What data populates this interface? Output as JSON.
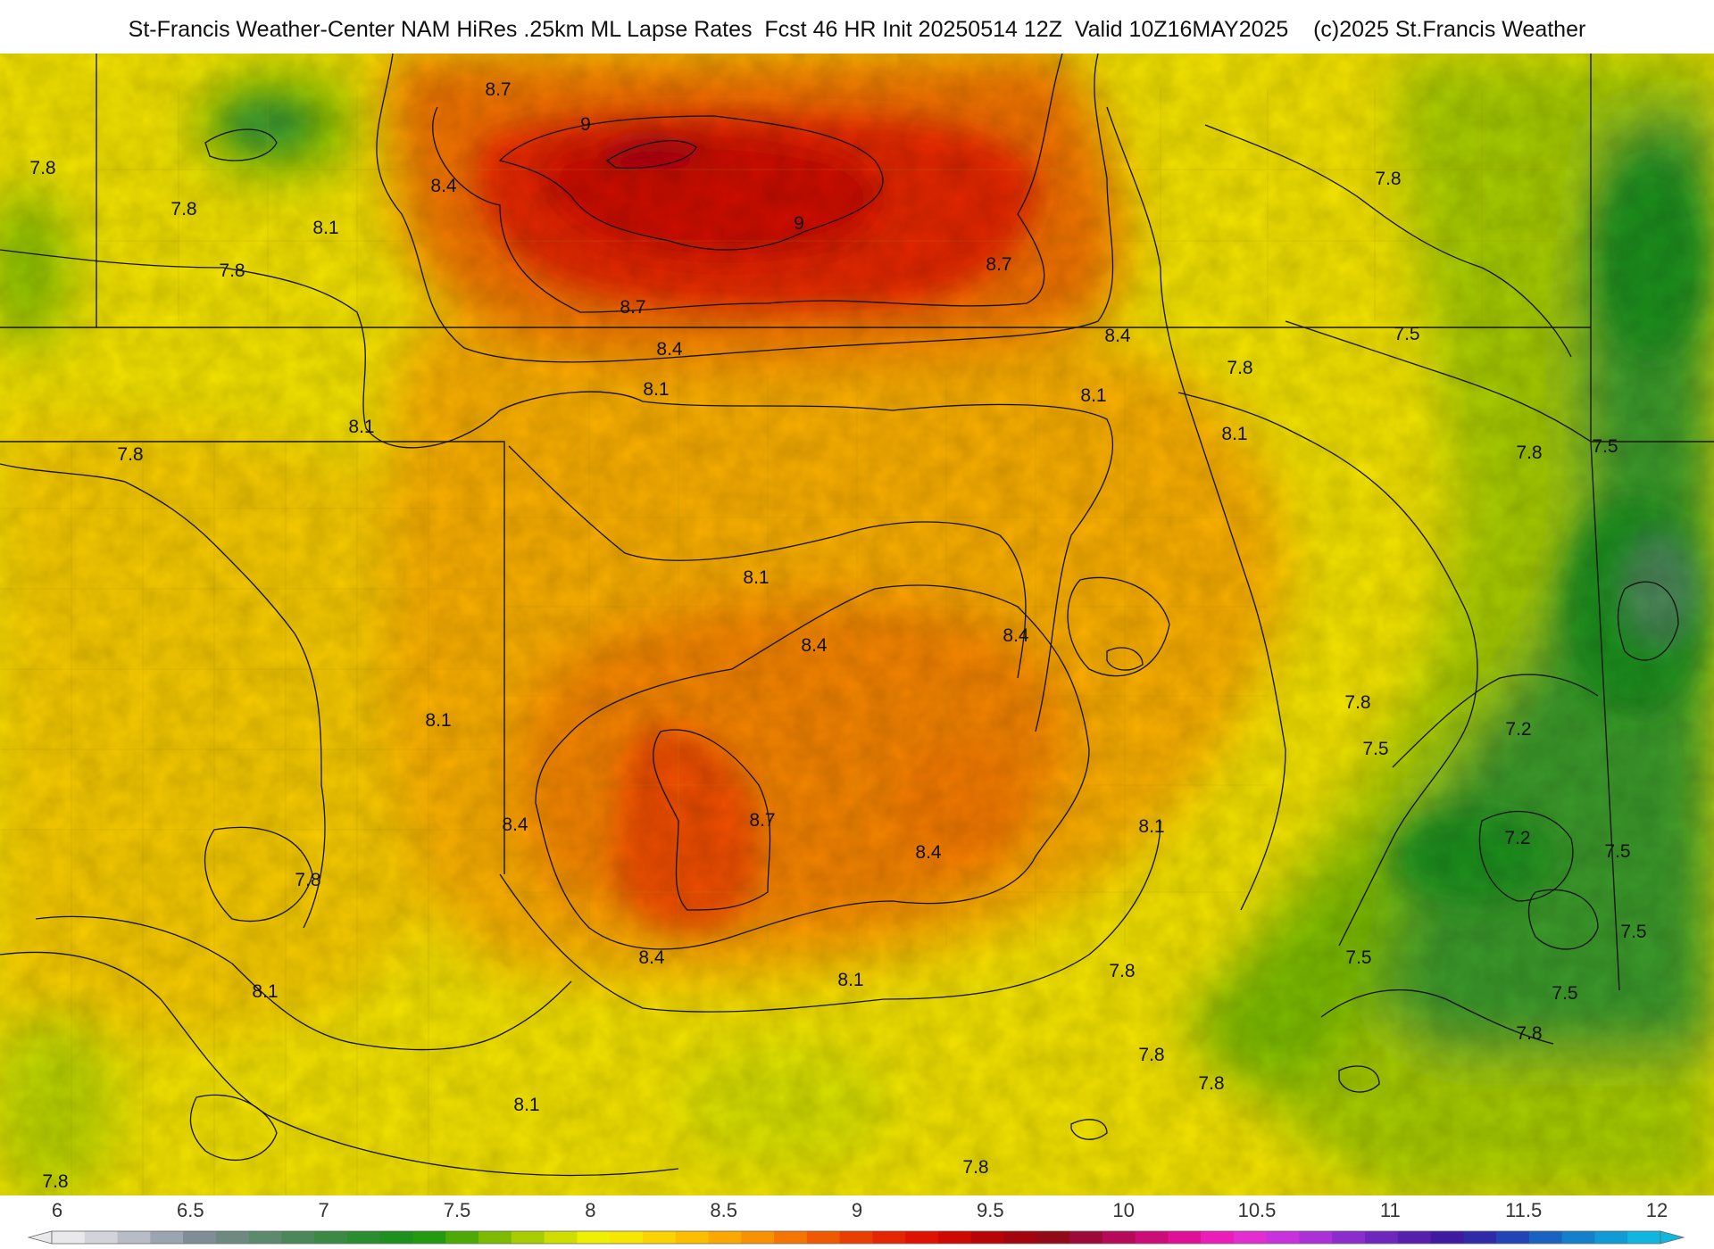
{
  "header": {
    "title": "St-Francis Weather-Center NAM HiRes .25km ML Lapse Rates  Fcst 46 HR Init 20250514 12Z  Valid 10Z16MAY2025    (c)2025 St.Francis Weather"
  },
  "colorbar": {
    "ticks": [
      "6",
      "6.5",
      "7",
      "7.5",
      "8",
      "8.5",
      "9",
      "9.5",
      "10",
      "10.5",
      "11",
      "11.5",
      "12"
    ],
    "colors": [
      "#e9e9ec",
      "#d2d4da",
      "#b7bcc6",
      "#9ba4b1",
      "#7f8d97",
      "#6e8a80",
      "#5b8a6c",
      "#4b8758",
      "#3a8a44",
      "#2c8c30",
      "#1e901e",
      "#239a10",
      "#4da906",
      "#7cbb00",
      "#a7cc00",
      "#cfdd00",
      "#eef000",
      "#f7e600",
      "#fbd300",
      "#fcbf00",
      "#fba900",
      "#f89100",
      "#f47600",
      "#ef5a00",
      "#ea3d00",
      "#e52400",
      "#df1200",
      "#cf0800",
      "#b80408",
      "#a3050f",
      "#900a18",
      "#9c0a38",
      "#b40a58",
      "#cc0c78",
      "#e00f98",
      "#ec1cb8",
      "#e22ed0",
      "#c931dc",
      "#aa31d8",
      "#8b2ccc",
      "#6f26bc",
      "#5720ac",
      "#3f1aa0",
      "#2f2aa8",
      "#2244b4",
      "#1a62c0",
      "#1480cc",
      "#109ad6",
      "#10b6de"
    ]
  },
  "map_data": {
    "field": "ML Lapse Rates",
    "contour_labels": [
      {
        "text": "8.7"
      },
      {
        "text": "9"
      },
      {
        "text": "7.8"
      },
      {
        "text": "8.4"
      },
      {
        "text": "7.8"
      },
      {
        "text": "8.1"
      },
      {
        "text": "7.8"
      },
      {
        "text": "9"
      },
      {
        "text": "8.7"
      },
      {
        "text": "8.7"
      },
      {
        "text": "7.8"
      },
      {
        "text": "8.4"
      },
      {
        "text": "8.4"
      },
      {
        "text": "8.1"
      },
      {
        "text": "8.1"
      },
      {
        "text": "7.5"
      },
      {
        "text": "7.8"
      },
      {
        "text": "8.1"
      },
      {
        "text": "7.8"
      },
      {
        "text": "7.8"
      },
      {
        "text": "7.5"
      },
      {
        "text": "8.1"
      },
      {
        "text": "8.4"
      },
      {
        "text": "8.4"
      },
      {
        "text": "8.1"
      },
      {
        "text": "7.8"
      },
      {
        "text": "8.4"
      },
      {
        "text": "8.7"
      },
      {
        "text": "8.4"
      },
      {
        "text": "8.1"
      },
      {
        "text": "7.8"
      },
      {
        "text": "7.5"
      },
      {
        "text": "7.2"
      },
      {
        "text": "7.2"
      },
      {
        "text": "7.5"
      },
      {
        "text": "8.1"
      },
      {
        "text": "8.4"
      },
      {
        "text": "8.1"
      },
      {
        "text": "7.8"
      },
      {
        "text": "7.5"
      },
      {
        "text": "7.5"
      },
      {
        "text": "7.5"
      },
      {
        "text": "8.1"
      },
      {
        "text": "8.1"
      },
      {
        "text": "7.8"
      },
      {
        "text": "7.8"
      },
      {
        "text": "7.8"
      },
      {
        "text": "7.8"
      },
      {
        "text": "7.8"
      }
    ]
  }
}
